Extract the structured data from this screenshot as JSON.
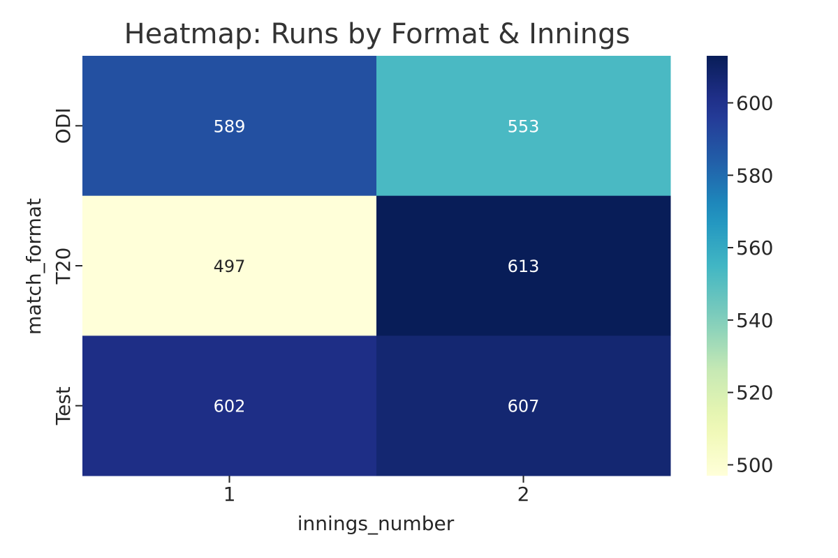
{
  "chart_data": {
    "type": "heatmap",
    "title": "Heatmap: Runs by Format & Innings",
    "xlabel": "innings_number",
    "ylabel": "match_format",
    "x_categories": [
      "1",
      "2"
    ],
    "y_categories": [
      "ODI",
      "T20",
      "Test"
    ],
    "values": [
      [
        589,
        553
      ],
      [
        497,
        613
      ],
      [
        602,
        607
      ]
    ],
    "colormap": "YlGnBu",
    "color_range": [
      497,
      613
    ],
    "colorbar_ticks": [
      500,
      520,
      540,
      560,
      580,
      600
    ],
    "annotation_light_color": "#ffffff",
    "annotation_dark_color": "#262626",
    "grid": false
  }
}
